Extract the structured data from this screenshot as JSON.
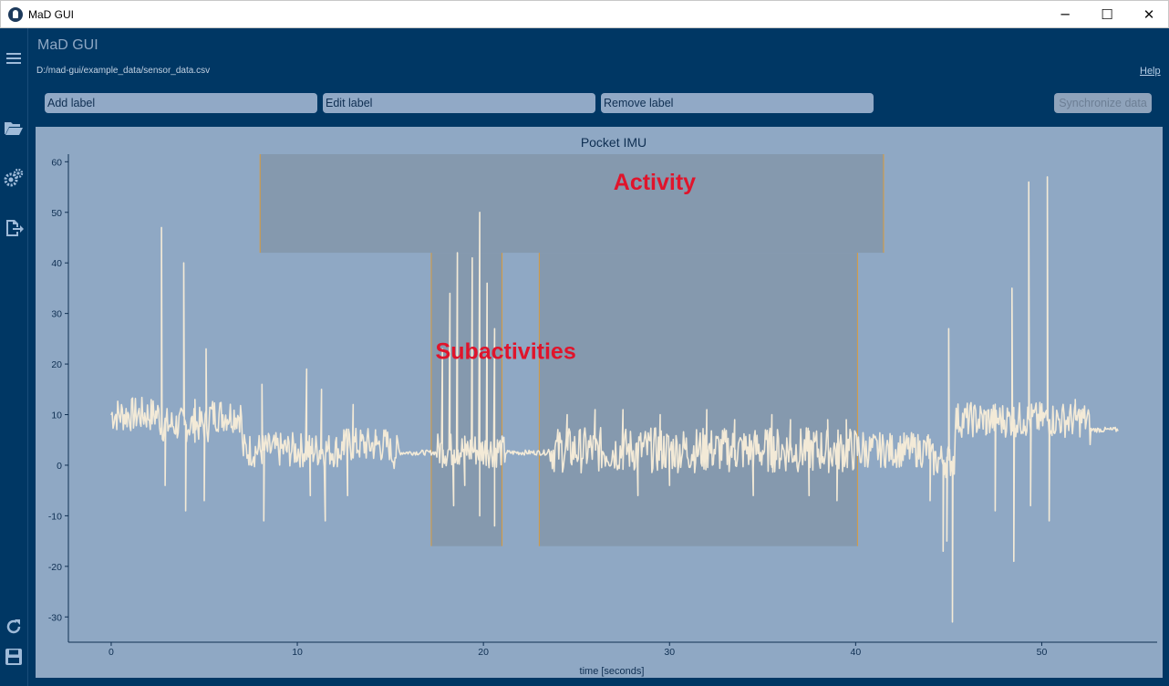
{
  "window": {
    "title": "MaD GUI",
    "controls": [
      "─",
      "☐",
      "✕"
    ]
  },
  "sidebar": {
    "icons": [
      "menu-icon",
      "folder-open-icon",
      "gears-icon",
      "export-icon",
      "reload-icon",
      "save-icon"
    ]
  },
  "header": {
    "title": "MaD GUI",
    "file_path": "D:/mad-gui/example_data/sensor_data.csv",
    "help": "Help"
  },
  "toolbar": {
    "add_label": "Add label",
    "edit_label": "Edit label",
    "remove_label": "Remove label",
    "sync_label": "Synchronize data"
  },
  "colors": {
    "background": "#003764",
    "plot_background": "#8fa8c4",
    "signal": "#f3ead7",
    "label_region": "#8599ae",
    "label_edge": "#d99a3c",
    "annotation_text": "#e0142b"
  },
  "chart_data": {
    "type": "line",
    "title": "Pocket IMU",
    "xlabel": "time [seconds]",
    "ylabel": "",
    "xlim": [
      -2.3,
      56.2
    ],
    "ylim": [
      -35,
      61.5
    ],
    "xticks": [
      0,
      10,
      20,
      30,
      40,
      50
    ],
    "yticks": [
      60,
      50,
      40,
      30,
      20,
      10,
      0,
      -10,
      -20,
      -30
    ],
    "regions": [
      {
        "name": "activity",
        "x_start": 8.0,
        "x_end": 41.5,
        "y_min": 42,
        "y_max": 61.5
      },
      {
        "name": "subactivity-1",
        "x_start": 17.2,
        "x_end": 21.0,
        "y_min": -16,
        "y_max": 42
      },
      {
        "name": "subactivity-2",
        "x_start": 23.0,
        "x_end": 40.1,
        "y_min": -16,
        "y_max": 42
      }
    ],
    "annotations": [
      {
        "text": "Activity",
        "x": 29.2,
        "y": 54.5
      },
      {
        "text": "Subactivities",
        "x": 21.2,
        "y": 21
      }
    ],
    "series": [
      {
        "values_description": "",
        "x_start": 0,
        "x_end": 54.1,
        "baseline_segments": [
          {
            "x0": 0.0,
            "x1": 2.6,
            "level": 10
          },
          {
            "x0": 2.6,
            "x1": 5.2,
            "level": 8
          },
          {
            "x0": 5.2,
            "x1": 7.0,
            "level": 10
          },
          {
            "x0": 7.0,
            "x1": 12.5,
            "level": 3
          },
          {
            "x0": 12.5,
            "x1": 15.0,
            "level": 4
          },
          {
            "x0": 15.0,
            "x1": 17.5,
            "level": 2.5
          },
          {
            "x0": 17.5,
            "x1": 21.0,
            "level": 3
          },
          {
            "x0": 21.0,
            "x1": 23.5,
            "level": 2.5
          },
          {
            "x0": 23.5,
            "x1": 40.5,
            "level": 3
          },
          {
            "x0": 40.5,
            "x1": 44.0,
            "level": 3
          },
          {
            "x0": 44.0,
            "x1": 45.3,
            "level": 1
          },
          {
            "x0": 45.3,
            "x1": 52.5,
            "level": 9
          },
          {
            "x0": 52.5,
            "x1": 54.1,
            "level": 7
          }
        ],
        "spikes": [
          {
            "x": 2.7,
            "y": 47
          },
          {
            "x": 2.9,
            "y": -4
          },
          {
            "x": 3.9,
            "y": 40
          },
          {
            "x": 4.0,
            "y": -9
          },
          {
            "x": 4.5,
            "y": 13
          },
          {
            "x": 5.1,
            "y": 23
          },
          {
            "x": 5.0,
            "y": -7
          },
          {
            "x": 8.1,
            "y": 16
          },
          {
            "x": 8.2,
            "y": -11
          },
          {
            "x": 10.5,
            "y": 19
          },
          {
            "x": 10.7,
            "y": -6
          },
          {
            "x": 11.3,
            "y": 15
          },
          {
            "x": 11.5,
            "y": -11
          },
          {
            "x": 12.5,
            "y": 7
          },
          {
            "x": 12.7,
            "y": -6
          },
          {
            "x": 13.0,
            "y": 12
          },
          {
            "x": 14.2,
            "y": 7
          },
          {
            "x": 17.8,
            "y": 23
          },
          {
            "x": 18.2,
            "y": 34
          },
          {
            "x": 18.6,
            "y": 42
          },
          {
            "x": 19.0,
            "y": -4
          },
          {
            "x": 19.4,
            "y": 41
          },
          {
            "x": 19.8,
            "y": 50
          },
          {
            "x": 19.8,
            "y": -10
          },
          {
            "x": 20.2,
            "y": 36
          },
          {
            "x": 20.6,
            "y": 27
          },
          {
            "x": 20.6,
            "y": -12
          },
          {
            "x": 18.4,
            "y": -8
          },
          {
            "x": 24.5,
            "y": 10
          },
          {
            "x": 26.0,
            "y": 11
          },
          {
            "x": 27.5,
            "y": 11
          },
          {
            "x": 28.3,
            "y": -6
          },
          {
            "x": 29.5,
            "y": 10
          },
          {
            "x": 30.0,
            "y": -4
          },
          {
            "x": 32.0,
            "y": 11
          },
          {
            "x": 33.5,
            "y": 9
          },
          {
            "x": 34.5,
            "y": -6
          },
          {
            "x": 35.5,
            "y": 10
          },
          {
            "x": 36.5,
            "y": 9
          },
          {
            "x": 37.5,
            "y": -6
          },
          {
            "x": 38.5,
            "y": 9
          },
          {
            "x": 39.5,
            "y": 9
          },
          {
            "x": 39.0,
            "y": -7
          },
          {
            "x": 43.9,
            "y": 6
          },
          {
            "x": 44.0,
            "y": -7
          },
          {
            "x": 44.7,
            "y": -17
          },
          {
            "x": 45.0,
            "y": 27
          },
          {
            "x": 45.2,
            "y": -31
          },
          {
            "x": 44.9,
            "y": -15
          },
          {
            "x": 47.0,
            "y": 6
          },
          {
            "x": 47.5,
            "y": -9
          },
          {
            "x": 48.4,
            "y": 35
          },
          {
            "x": 48.5,
            "y": -19
          },
          {
            "x": 49.3,
            "y": 56
          },
          {
            "x": 49.4,
            "y": -8
          },
          {
            "x": 50.3,
            "y": 57
          },
          {
            "x": 50.4,
            "y": -11
          },
          {
            "x": 49.0,
            "y": 7
          },
          {
            "x": 51.8,
            "y": 13
          }
        ]
      }
    ]
  }
}
